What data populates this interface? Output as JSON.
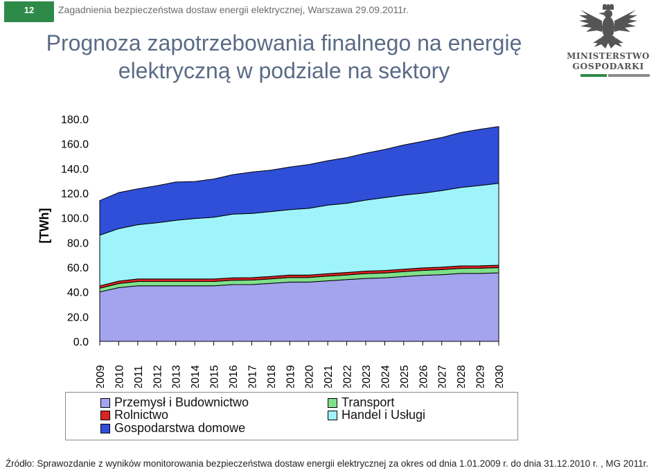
{
  "header": {
    "slide_number": "12",
    "event_line": "Zagadnienia bezpieczeństwa dostaw energii elektrycznej, Warszawa 29.09.2011r."
  },
  "title": {
    "line1": "Prognoza zapotrzebowania finalnego na energię",
    "line2": "elektryczną w podziale na sektory"
  },
  "logo": {
    "line1": "MINISTERSTWO",
    "line2": "GOSPODARKI",
    "icon": "eagle-emblem-icon"
  },
  "source": "Źródło: Sprawozdanie z wyników monitorowania bezpieczeństwa dostaw energii elektrycznej za okres od dnia 1.01.2009 r. do dnia 31.12.2010 r. , MG 2011r.",
  "colors": {
    "badge": "#2e8a49",
    "title": "#5a6b86"
  },
  "chart_data": {
    "type": "area",
    "stacked": true,
    "title": "",
    "xlabel": "",
    "ylabel": "[TWh]",
    "ylim": [
      0,
      180
    ],
    "yticks": [
      "0.0",
      "20.0",
      "40.0",
      "60.0",
      "80.0",
      "100.0",
      "120.0",
      "140.0",
      "160.0",
      "180.0"
    ],
    "grid": false,
    "legend_position": "bottom",
    "categories": [
      "2009",
      "2010",
      "2011",
      "2012",
      "2013",
      "2014",
      "2015",
      "2016",
      "2017",
      "2018",
      "2019",
      "2020",
      "2021",
      "2022",
      "2023",
      "2024",
      "2025",
      "2026",
      "2027",
      "2028",
      "2029",
      "2030"
    ],
    "series": [
      {
        "name": "Przemysł i Budownictwo",
        "color": "#a3a3ee",
        "values": [
          40.0,
          43.5,
          45.0,
          45.0,
          45.0,
          45.0,
          45.0,
          46.0,
          46.0,
          47.0,
          48.0,
          48.0,
          49.0,
          50.0,
          51.0,
          51.5,
          52.5,
          53.5,
          54.0,
          55.0,
          55.0,
          55.5
        ]
      },
      {
        "name": "Transport",
        "color": "#7fe08a",
        "values": [
          3.0,
          3.3,
          3.5,
          3.5,
          3.5,
          3.5,
          3.5,
          3.5,
          3.6,
          3.6,
          3.7,
          3.7,
          3.8,
          3.8,
          3.9,
          3.9,
          4.0,
          4.0,
          4.1,
          4.1,
          4.2,
          4.2
        ]
      },
      {
        "name": "Rolnictwo",
        "color": "#dd2222",
        "values": [
          2.0,
          2.0,
          2.0,
          2.0,
          2.0,
          2.0,
          2.0,
          2.0,
          2.0,
          2.0,
          2.0,
          2.0,
          2.0,
          2.0,
          2.0,
          2.0,
          2.0,
          2.0,
          2.0,
          2.0,
          2.0,
          2.0
        ]
      },
      {
        "name": "Handel i Usługi",
        "color": "#9ff4fb",
        "values": [
          41.0,
          42.5,
          44.0,
          45.5,
          47.5,
          49.0,
          50.0,
          51.5,
          52.0,
          52.5,
          53.0,
          54.0,
          55.5,
          56.0,
          57.5,
          59.0,
          60.0,
          60.5,
          62.0,
          63.5,
          65.0,
          66.3
        ]
      },
      {
        "name": "Gospodarstwa domowe",
        "color": "#2f4fd8",
        "values": [
          28.0,
          29.2,
          29.0,
          30.0,
          31.0,
          30.0,
          31.0,
          32.0,
          33.5,
          33.5,
          34.5,
          35.5,
          36.0,
          37.0,
          38.0,
          39.0,
          40.5,
          42.0,
          43.0,
          44.5,
          45.5,
          46.0
        ]
      }
    ]
  }
}
